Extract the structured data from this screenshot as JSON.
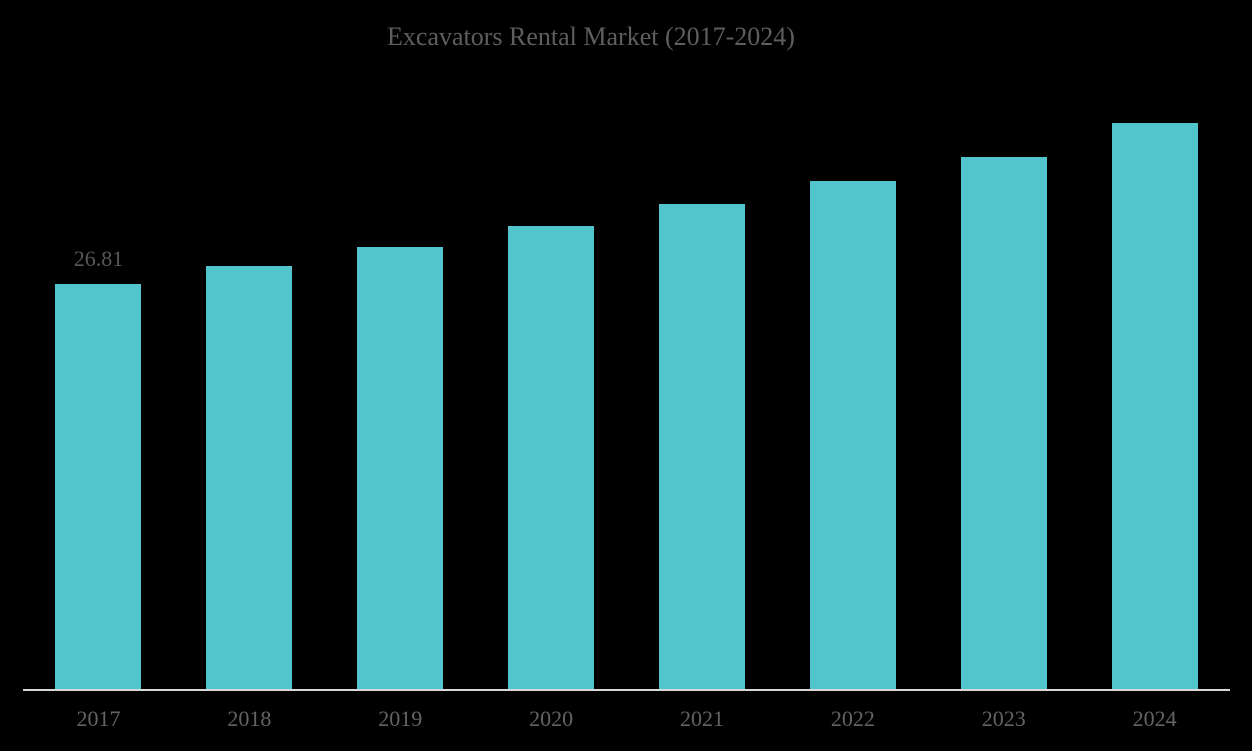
{
  "chart_data": {
    "type": "bar",
    "title": "Excavators Rental Market (2017-2024)",
    "categories": [
      "2017",
      "2018",
      "2019",
      "2020",
      "2021",
      "2022",
      "2023",
      "2024"
    ],
    "values": [
      26.81,
      28.05,
      29.3,
      30.65,
      32.1,
      33.65,
      35.2,
      37.5
    ],
    "data_labels": [
      "26.81",
      "",
      "",
      "",
      "",
      "",
      "",
      ""
    ],
    "xlabel": "",
    "ylabel": "",
    "ylim": [
      0,
      45.6
    ],
    "grid": false,
    "legend": false
  },
  "colors": {
    "background": "#000000",
    "bar": "#52C4CC",
    "title_text": "#5E5E5E",
    "tick_text": "#636363",
    "data_label_text": "#575757",
    "axis_line": "#D8D8D8"
  }
}
